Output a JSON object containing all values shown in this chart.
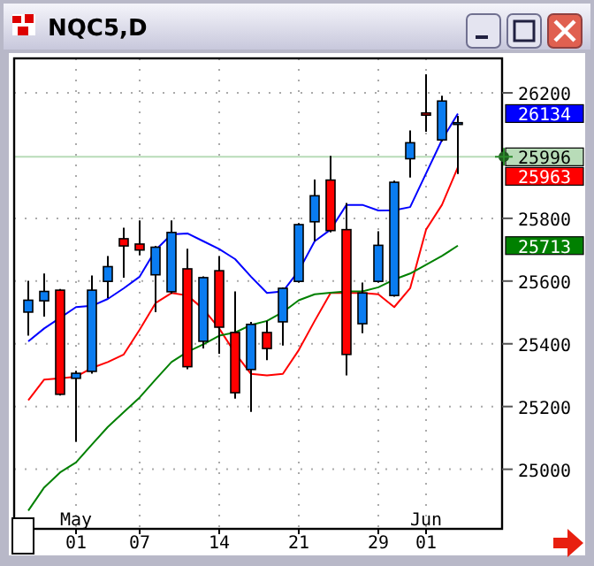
{
  "chart_data": {
    "type": "candlestick",
    "title": "NQC5,D",
    "categories": [
      null,
      null,
      null,
      "May 01",
      null,
      null,
      null,
      "07",
      null,
      null,
      null,
      null,
      "14",
      null,
      null,
      null,
      null,
      "21",
      null,
      null,
      null,
      null,
      "29",
      null,
      null,
      "Jun 01",
      null,
      null
    ],
    "ohlc": [
      [
        25501,
        25601,
        25426,
        25539
      ],
      [
        25537,
        25624,
        25487,
        25567
      ],
      [
        25571,
        25575,
        25235,
        25239
      ],
      [
        25290,
        25314,
        25088,
        25306
      ],
      [
        25312,
        25618,
        25305,
        25571
      ],
      [
        25599,
        25680,
        25546,
        25646
      ],
      [
        25735,
        25770,
        25611,
        25712
      ],
      [
        25718,
        25793,
        25682,
        25699
      ],
      [
        25620,
        25712,
        25501,
        25708
      ],
      [
        25566,
        25793,
        25560,
        25755
      ],
      [
        25639,
        25703,
        25319,
        25327
      ],
      [
        25408,
        25615,
        25385,
        25611
      ],
      [
        25633,
        25680,
        25368,
        25453
      ],
      [
        25436,
        25567,
        25225,
        25244
      ],
      [
        25318,
        25470,
        25183,
        25462
      ],
      [
        25436,
        25473,
        25348,
        25385
      ],
      [
        25470,
        25580,
        25394,
        25577
      ],
      [
        25599,
        25785,
        25595,
        25780
      ],
      [
        25789,
        25924,
        25727,
        25872
      ],
      [
        25922,
        25999,
        25755,
        25761
      ],
      [
        25764,
        25849,
        25299,
        25366
      ],
      [
        25464,
        25595,
        25434,
        25562
      ],
      [
        25599,
        25759,
        25595,
        25714
      ],
      [
        25554,
        25920,
        25550,
        25915
      ],
      [
        25990,
        26080,
        25930,
        26041
      ],
      [
        26136,
        26259,
        26076,
        26129
      ],
      [
        26050,
        26191,
        26045,
        26174
      ],
      [
        26100,
        26127,
        25941,
        26105
      ]
    ],
    "colors": [
      "#0a7cf0",
      "#0a7cf0",
      "#ff0000",
      "#0a7cf0",
      "#0a7cf0",
      "#0a7cf0",
      "#ff0000",
      "#ff0000",
      "#0a7cf0",
      "#0a7cf0",
      "#ff0000",
      "#0a7cf0",
      "#ff0000",
      "#ff0000",
      "#0a7cf0",
      "#ff0000",
      "#0a7cf0",
      "#0a7cf0",
      "#0a7cf0",
      "#ff0000",
      "#ff0000",
      "#0a7cf0",
      "#0a7cf0",
      "#0a7cf0",
      "#0a7cf0",
      "#ff0000",
      "#0a7cf0",
      "#0a7cf0"
    ],
    "series": [
      {
        "type": "line",
        "color": "#0000ff",
        "values": [
          25408,
          25449,
          25483,
          25517,
          25521,
          25543,
          25577,
          25614,
          25699,
          25749,
          25752,
          25727,
          25702,
          25670,
          25614,
          25562,
          25567,
          25633,
          25727,
          25764,
          25843,
          25843,
          25825,
          25826,
          25836,
          25943,
          26050,
          26134
        ]
      },
      {
        "type": "line",
        "color": "#ff0000",
        "values": [
          25220,
          25286,
          25290,
          25295,
          25323,
          25342,
          25366,
          25445,
          25530,
          25562,
          25554,
          25511,
          25449,
          25370,
          25304,
          25299,
          25304,
          25380,
          25473,
          25562,
          25562,
          25562,
          25558,
          25517,
          25577,
          25764,
          25843,
          25963
        ]
      },
      {
        "type": "line",
        "color": "#008000",
        "values": [
          24868,
          24942,
          24990,
          25022,
          25079,
          25135,
          25182,
          25229,
          25286,
          25342,
          25374,
          25398,
          25426,
          25436,
          25460,
          25473,
          25501,
          25539,
          25558,
          25563,
          25567,
          25567,
          25580,
          25605,
          25624,
          25652,
          25680,
          25713
        ]
      }
    ],
    "ylim": [
      24810,
      26310
    ],
    "yticks": [
      25000,
      25200,
      25400,
      25600,
      25800,
      {
        "value": 26000,
        "label": null
      },
      26200
    ],
    "annotations": [
      "26134",
      "25963",
      "25713"
    ],
    "ref_lines": [
      {
        "axis": "y",
        "value": 25996,
        "label": "25996",
        "color": "#b8dcb8"
      }
    ],
    "grid": true,
    "marker": "none",
    "line_style": "solid"
  }
}
